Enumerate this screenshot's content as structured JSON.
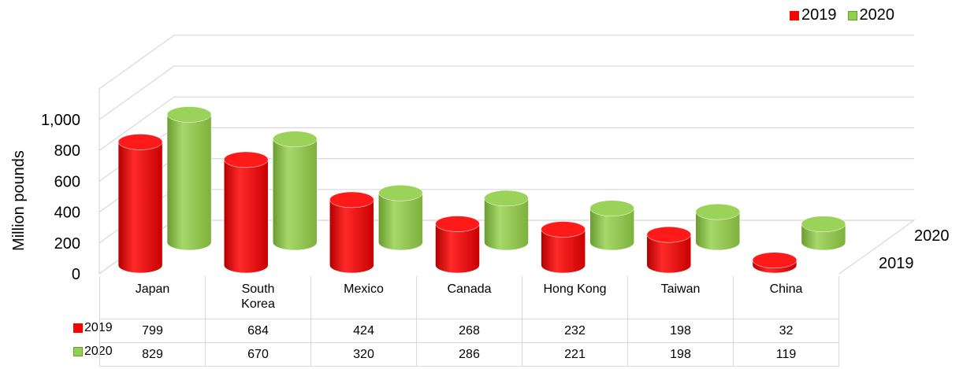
{
  "chart_data": {
    "type": "bar",
    "subtype": "3d-cylinder",
    "categories": [
      "Japan",
      "South\nKorea",
      "Mexico",
      "Canada",
      "Hong Kong",
      "Taiwan",
      "China"
    ],
    "series": [
      {
        "name": "2019",
        "values": [
          799,
          684,
          424,
          268,
          232,
          198,
          32
        ],
        "color": "#ff0000"
      },
      {
        "name": "2020",
        "values": [
          829,
          670,
          320,
          286,
          221,
          198,
          119
        ],
        "color": "#92d050"
      }
    ],
    "ylabel": "Million pounds",
    "ylim": [
      0,
      1000
    ],
    "yticks": [
      "0",
      "200",
      "400",
      "600",
      "800",
      "1,000"
    ],
    "depth_labels": [
      "2019",
      "2020"
    ],
    "legend_position": "top-right",
    "grid": true,
    "data_table": true
  }
}
